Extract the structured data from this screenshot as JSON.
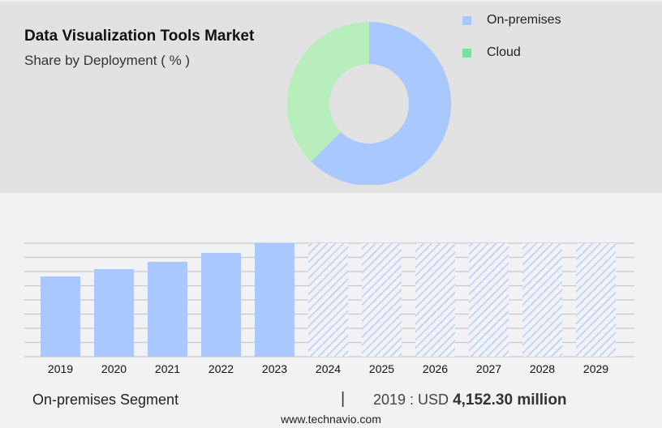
{
  "header": {
    "title": "Data Visualization Tools Market",
    "subtitle": "Share by Deployment ( % )"
  },
  "chart_data": [
    {
      "type": "pie",
      "variant": "donut",
      "legend_position": "top-right",
      "series": [
        {
          "name": "On-premises",
          "value": 62.5,
          "color": "#a8c8ff"
        },
        {
          "name": "Cloud",
          "value": 37.5,
          "color": "#b8eebb"
        }
      ],
      "legend": [
        {
          "name": "On-premises",
          "color": "#a8c8ff"
        },
        {
          "name": "Cloud",
          "color": "#78e29a"
        }
      ]
    },
    {
      "type": "bar",
      "title": "",
      "xlabel": "",
      "ylabel": "",
      "grid": true,
      "categories": [
        "2019",
        "2020",
        "2021",
        "2022",
        "2023",
        "2024",
        "2025",
        "2026",
        "2027",
        "2028",
        "2029"
      ],
      "values": [
        4152.3,
        4530,
        4907,
        5368,
        5872,
        null,
        null,
        null,
        null,
        null,
        null
      ],
      "forecast_categories": [
        "2024",
        "2025",
        "2026",
        "2027",
        "2028",
        "2029"
      ],
      "ylim": [
        0,
        5872
      ],
      "color": "#a8c8ff"
    }
  ],
  "footer": {
    "segment": "On-premises Segment",
    "separator": "|",
    "year_label": "2019 : USD",
    "value": "4,152.30 million",
    "url": "www.technavio.com"
  }
}
